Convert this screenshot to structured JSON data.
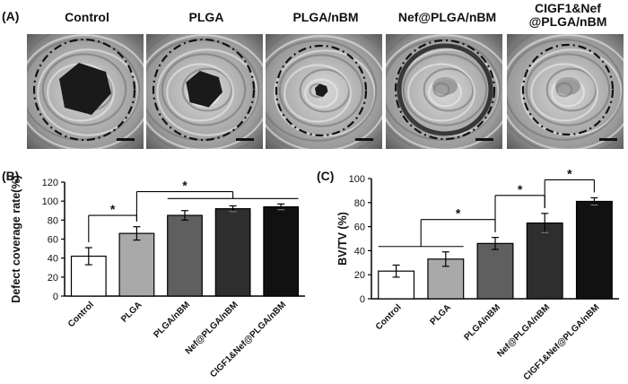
{
  "panel_labels": {
    "a": "(A)",
    "b": "(B)",
    "c": "(C)"
  },
  "photo_columns": [
    "Control",
    "PLGA",
    "PLGA/nBM",
    "Nef@PLGA/nBM",
    "CIGF1&Nef\n@PLGA/nBM"
  ],
  "chart_data": [
    {
      "type": "bar",
      "categories": [
        "Control",
        "PLGA",
        "PLGA/nBM",
        "Nef@PLGA/nBM",
        "CIGF1&Nef@PLGA/nBM"
      ],
      "values": [
        42,
        66,
        85,
        92,
        94
      ],
      "errors": [
        9,
        7,
        5,
        3,
        3
      ],
      "bar_colors": [
        "#ffffff",
        "#a9a9a9",
        "#5f5f5f",
        "#2e2e2e",
        "#111111"
      ],
      "ylabel": "Defect coverage rate(%)",
      "xlabel": "",
      "ylim": [
        0,
        120
      ],
      "yticks": [
        0,
        20,
        40,
        60,
        80,
        100,
        120
      ],
      "significance": [
        {
          "from": [
            0
          ],
          "to": [
            1
          ],
          "label": "*"
        },
        {
          "from": [
            1
          ],
          "to": [
            2,
            3,
            4
          ],
          "label": "*"
        }
      ]
    },
    {
      "type": "bar",
      "categories": [
        "Control",
        "PLGA",
        "PLGA/nBM",
        "Nef@PLGA/nBM",
        "CIGF1&Nef@PLGA/nBM"
      ],
      "values": [
        23,
        33,
        46,
        63,
        81
      ],
      "errors": [
        5,
        6,
        5,
        8,
        3
      ],
      "bar_colors": [
        "#ffffff",
        "#a9a9a9",
        "#5f5f5f",
        "#2e2e2e",
        "#111111"
      ],
      "ylabel": "BV/TV (%)",
      "xlabel": "",
      "ylim": [
        0,
        100
      ],
      "yticks": [
        0,
        20,
        40,
        60,
        80,
        100
      ],
      "significance": [
        {
          "from": [
            0,
            1
          ],
          "to": [
            2
          ],
          "label": "*"
        },
        {
          "from": [
            2
          ],
          "to": [
            3
          ],
          "label": "*"
        },
        {
          "from": [
            3
          ],
          "to": [
            4
          ],
          "label": "*"
        }
      ]
    }
  ]
}
